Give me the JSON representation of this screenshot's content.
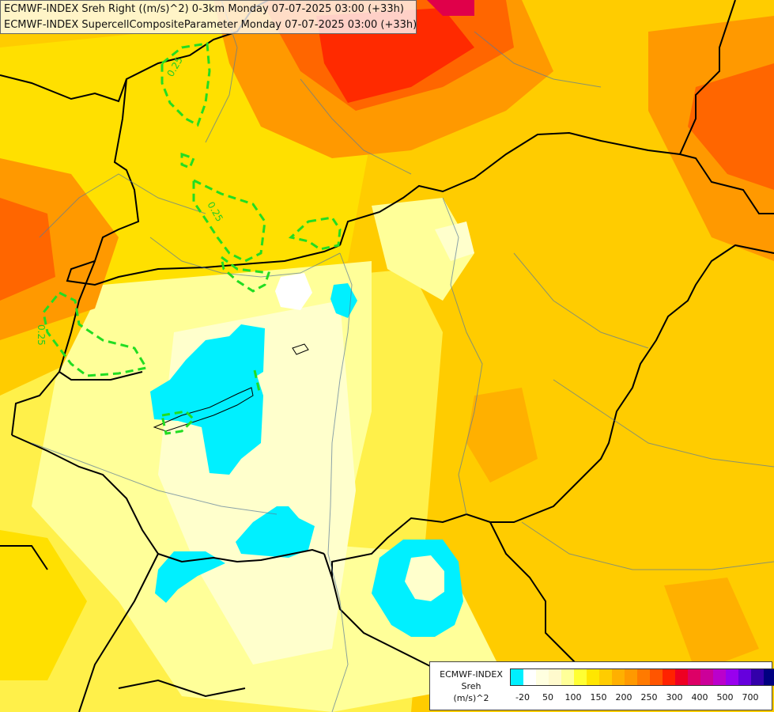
{
  "titles": {
    "line1": "ECMWF-INDEX Sreh Right ((m/s)^2) 0-3km Monday 07-07-2025 03:00 (+33h)",
    "line2": "ECMWF-INDEX SupercellCompositeParameter Monday 07-07-2025 03:00 (+33h)"
  },
  "legend": {
    "title_line1": "ECMWF-INDEX",
    "title_line2": "Sreh",
    "title_line3": "(m/s)^2",
    "swatch_colors": [
      "#00f0ff",
      "#ffffff",
      "#ffffe0",
      "#fffacd",
      "#ffff99",
      "#ffff33",
      "#ffe600",
      "#ffcc00",
      "#ffb000",
      "#ff9900",
      "#ff7a00",
      "#ff5500",
      "#ff2200",
      "#ee0022",
      "#dd0066",
      "#cc0099",
      "#bb00cc",
      "#9900ee",
      "#6600dd",
      "#3300aa",
      "#000080"
    ],
    "ticks": [
      "-20",
      "50",
      "100",
      "150",
      "200",
      "250",
      "300",
      "400",
      "500",
      "700"
    ]
  },
  "contour_labels": [
    "0.25",
    "0.25",
    "0.25"
  ]
}
